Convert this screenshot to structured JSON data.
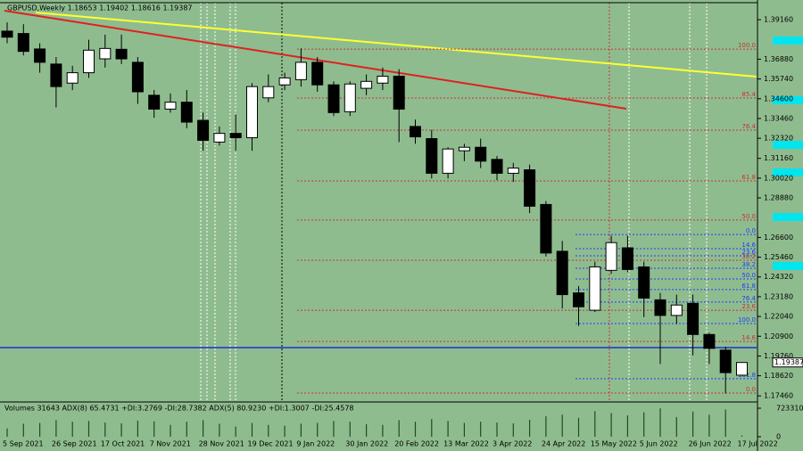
{
  "chart_data": [
    {
      "type": "candlestick",
      "title": "GBPUSD,Weekly  1.18653 1.19402 1.18616 1.19387",
      "categories": [
        "5 Sep 2021",
        null,
        null,
        "26 Sep 2021",
        null,
        null,
        "17 Oct 2021",
        null,
        null,
        "7 Nov 2021",
        null,
        null,
        "28 Nov 2021",
        null,
        null,
        "19 Dec 2021",
        null,
        null,
        "9 Jan 2022",
        null,
        null,
        "30 Jan 2022",
        null,
        null,
        "20 Feb 2022",
        null,
        null,
        "13 Mar 2022",
        null,
        null,
        "3 Apr 2022",
        null,
        null,
        "24 Apr 2022",
        null,
        null,
        "15 May 2022",
        null,
        null,
        "5 Jun 2022",
        null,
        null,
        "26 Jun 2022",
        null,
        null,
        "17 Jul 2022"
      ],
      "open": [
        1.385,
        1.3836,
        1.3747,
        1.366,
        1.355,
        1.361,
        1.369,
        1.3745,
        1.367,
        1.348,
        1.34,
        1.344,
        1.3335,
        1.321,
        1.326,
        1.3235,
        1.3465,
        1.354,
        1.357,
        1.367,
        1.354,
        1.3385,
        1.352,
        1.355,
        1.359,
        1.33,
        1.323,
        1.303,
        1.316,
        1.318,
        1.311,
        1.303,
        1.305,
        1.285,
        1.258,
        1.234,
        1.224,
        1.247,
        1.26,
        1.249,
        1.23,
        1.221,
        1.228,
        1.21,
        1.201,
        1.18653
      ],
      "high": [
        1.39,
        1.389,
        1.378,
        1.37,
        1.365,
        1.38,
        1.383,
        1.383,
        1.37,
        1.351,
        1.349,
        1.351,
        1.338,
        1.33,
        1.337,
        1.355,
        1.36,
        1.361,
        1.375,
        1.37,
        1.356,
        1.356,
        1.36,
        1.364,
        1.363,
        1.334,
        1.328,
        1.318,
        1.32,
        1.323,
        1.313,
        1.309,
        1.308,
        1.287,
        1.264,
        1.238,
        1.252,
        1.267,
        1.267,
        1.252,
        1.234,
        1.233,
        1.233,
        1.211,
        1.203,
        1.19402
      ],
      "low": [
        1.378,
        1.371,
        1.361,
        1.341,
        1.351,
        1.358,
        1.364,
        1.366,
        1.343,
        1.335,
        1.338,
        1.329,
        1.316,
        1.319,
        1.316,
        1.316,
        1.344,
        1.351,
        1.353,
        1.35,
        1.336,
        1.336,
        1.348,
        1.351,
        1.321,
        1.32,
        1.3,
        1.3,
        1.31,
        1.306,
        1.299,
        1.298,
        1.28,
        1.255,
        1.225,
        1.215,
        1.223,
        1.245,
        1.246,
        1.22,
        1.193,
        1.216,
        1.198,
        1.193,
        1.176,
        1.18616
      ],
      "close": [
        1.3815,
        1.3733,
        1.367,
        1.353,
        1.361,
        1.374,
        1.375,
        1.369,
        1.35,
        1.34,
        1.344,
        1.3325,
        1.322,
        1.326,
        1.3235,
        1.353,
        1.353,
        1.358,
        1.367,
        1.354,
        1.338,
        1.3545,
        1.356,
        1.359,
        1.34,
        1.324,
        1.303,
        1.317,
        1.318,
        1.31,
        1.303,
        1.306,
        1.284,
        1.257,
        1.233,
        1.226,
        1.249,
        1.263,
        1.2475,
        1.231,
        1.221,
        1.227,
        1.21,
        1.202,
        1.188,
        1.19387
      ],
      "ylim": [
        1.1716,
        1.4014
      ],
      "yticks": [
        {
          "value": 1.3916,
          "label": "1.39160"
        },
        {
          "value": 1.3688,
          "label": "1.36880"
        },
        {
          "value": 1.3574,
          "label": "1.35740"
        },
        {
          "value": 1.346,
          "label": "1.34600"
        },
        {
          "value": 1.3346,
          "label": "1.33460"
        },
        {
          "value": 1.3232,
          "label": "1.32320"
        },
        {
          "value": 1.3116,
          "label": "1.31160"
        },
        {
          "value": 1.3002,
          "label": "1.30020"
        },
        {
          "value": 1.2888,
          "label": "1.28880"
        },
        {
          "value": 1.266,
          "label": "1.26600"
        },
        {
          "value": 1.2546,
          "label": "1.25460"
        },
        {
          "value": 1.2432,
          "label": "1.24320"
        },
        {
          "value": 1.2318,
          "label": "1.23180"
        },
        {
          "value": 1.2204,
          "label": "1.22040"
        },
        {
          "value": 1.209,
          "label": "1.20900"
        },
        {
          "value": 1.1976,
          "label": "1.19760"
        },
        {
          "value": 1.1862,
          "label": "1.18620"
        },
        {
          "value": 1.1746,
          "label": "1.17460"
        }
      ],
      "fib_red": [
        {
          "value": 1.3746,
          "label": "100.0"
        },
        {
          "value": 1.3464,
          "label": "85.4"
        },
        {
          "value": 1.3279,
          "label": "76.4"
        },
        {
          "value": 1.2986,
          "label": "61.8"
        },
        {
          "value": 1.276,
          "label": "50.0"
        },
        {
          "value": 1.2528,
          "label": "38.2"
        },
        {
          "value": 1.224,
          "label": "23.6"
        },
        {
          "value": 1.206,
          "label": "14.6"
        },
        {
          "value": 1.1762,
          "label": "0.0"
        }
      ],
      "fib_blue": [
        {
          "value": 1.2677,
          "label": "0.0"
        },
        {
          "value": 1.2595,
          "label": "14.6"
        },
        {
          "value": 1.2554,
          "label": "23.6"
        },
        {
          "value": 1.2482,
          "label": "38.2"
        },
        {
          "value": 1.242,
          "label": "50.0"
        },
        {
          "value": 1.2359,
          "label": "61.8"
        },
        {
          "value": 1.2287,
          "label": "76.4"
        },
        {
          "value": 1.2163,
          "label": "100.0"
        },
        {
          "value": 1.1845,
          "label": "161.8"
        }
      ]
    },
    {
      "type": "bar",
      "title": "Volumes 31643   ADX(8) 65.4731 +DI:3.2769 -DI:28.7382   ADX(5) 80.9230 +DI:1.3007 -DI:25.4578",
      "values": [
        210000,
        330000,
        350000,
        420000,
        380000,
        400000,
        360000,
        340000,
        410000,
        390000,
        300000,
        380000,
        420000,
        330000,
        260000,
        350000,
        300000,
        280000,
        330000,
        350000,
        400000,
        380000,
        320000,
        300000,
        420000,
        380000,
        450000,
        400000,
        350000,
        380000,
        360000,
        340000,
        430000,
        520000,
        560000,
        480000,
        650000,
        600000,
        540000,
        620000,
        720000,
        500000,
        640000,
        560000,
        690000,
        31643
      ],
      "ylim": [
        0,
        723310
      ],
      "yticks": [
        0,
        723310
      ]
    }
  ]
}
